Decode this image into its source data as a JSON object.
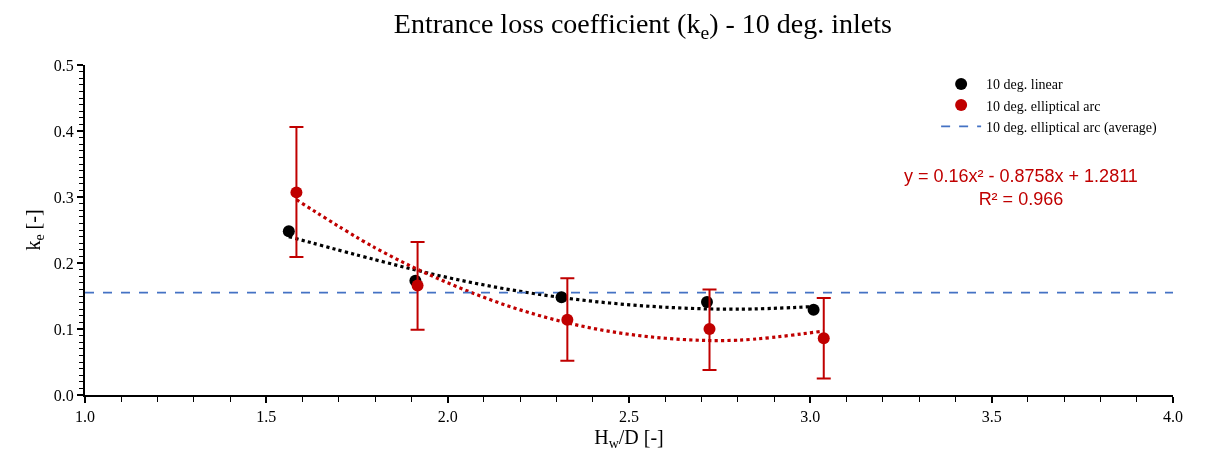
{
  "chart_data": {
    "type": "scatter",
    "title": "Entrance loss coefficient (k$_{e}$) - 10 deg. inlets",
    "xlabel": "H$_{w}$/D [-]",
    "ylabel": "k$_{e}$ [-]",
    "xlim": [
      1.0,
      4.0
    ],
    "xticks": [
      {
        "value": 1.0,
        "label": "1.0"
      },
      {
        "value": 1.5,
        "label": "1.5"
      },
      {
        "value": 2.0,
        "label": "2.0"
      },
      {
        "value": 2.5,
        "label": "2.5"
      },
      {
        "value": 3.0,
        "label": "3.0"
      },
      {
        "value": 3.5,
        "label": "3.5"
      },
      {
        "value": 4.0,
        "label": "4.0"
      }
    ],
    "ylim": [
      0.0,
      0.5
    ],
    "yticks": [
      {
        "value": 0.0,
        "label": "0.0"
      },
      {
        "value": 0.1,
        "label": "0.1"
      },
      {
        "value": 0.2,
        "label": "0.2"
      },
      {
        "value": 0.3,
        "label": "0.3"
      },
      {
        "value": 0.4,
        "label": "0.4"
      },
      {
        "value": 0.5,
        "label": "0.5"
      }
    ],
    "grid": false,
    "legend": "top right",
    "marker": "circle",
    "series": [
      {
        "name": "10 deg. linear",
        "color": "#000000",
        "x": [
          1.562,
          1.911,
          2.314,
          2.715,
          3.009
        ],
        "values": [
          0.248,
          0.173,
          0.148,
          0.141,
          0.129
        ]
      },
      {
        "name": "10 deg. elliptical arc",
        "color": "#c00000",
        "x": [
          1.583,
          1.917,
          2.33,
          2.722,
          3.037
        ],
        "values": [
          0.307,
          0.166,
          0.114,
          0.1,
          0.086
        ],
        "errors": [
          [
            0.209,
            0.406
          ],
          [
            0.099,
            0.232
          ],
          [
            0.052,
            0.177
          ],
          [
            0.038,
            0.16
          ],
          [
            0.025,
            0.147
          ]
        ]
      },
      {
        "type": "line",
        "color": "#000000",
        "line_style": "dotted",
        "marker": "none",
        "x": [
          1.562,
          1.8,
          2.0,
          2.2,
          2.4,
          2.6,
          2.8,
          3.009
        ],
        "values": [
          0.24,
          0.205,
          0.178,
          0.157,
          0.142,
          0.133,
          0.13,
          0.134
        ]
      },
      {
        "type": "line",
        "color": "#c00000",
        "line_style": "dotted",
        "marker": "none",
        "x": [
          1.583,
          1.8,
          2.0,
          2.2,
          2.4,
          2.6,
          2.8,
          3.037
        ],
        "values": [
          0.296,
          0.223,
          0.17,
          0.129,
          0.101,
          0.086,
          0.083,
          0.097
        ]
      }
    ],
    "ref_lines": [
      {
        "axis": "y",
        "value": 0.155,
        "label": "10 deg. elliptical arc (average)",
        "color": "#4472c4",
        "line_style": "dashed"
      }
    ],
    "annotations": [
      "y = 0.16x² - 0.8758x + 1.2811",
      "R² = 0.966"
    ]
  }
}
